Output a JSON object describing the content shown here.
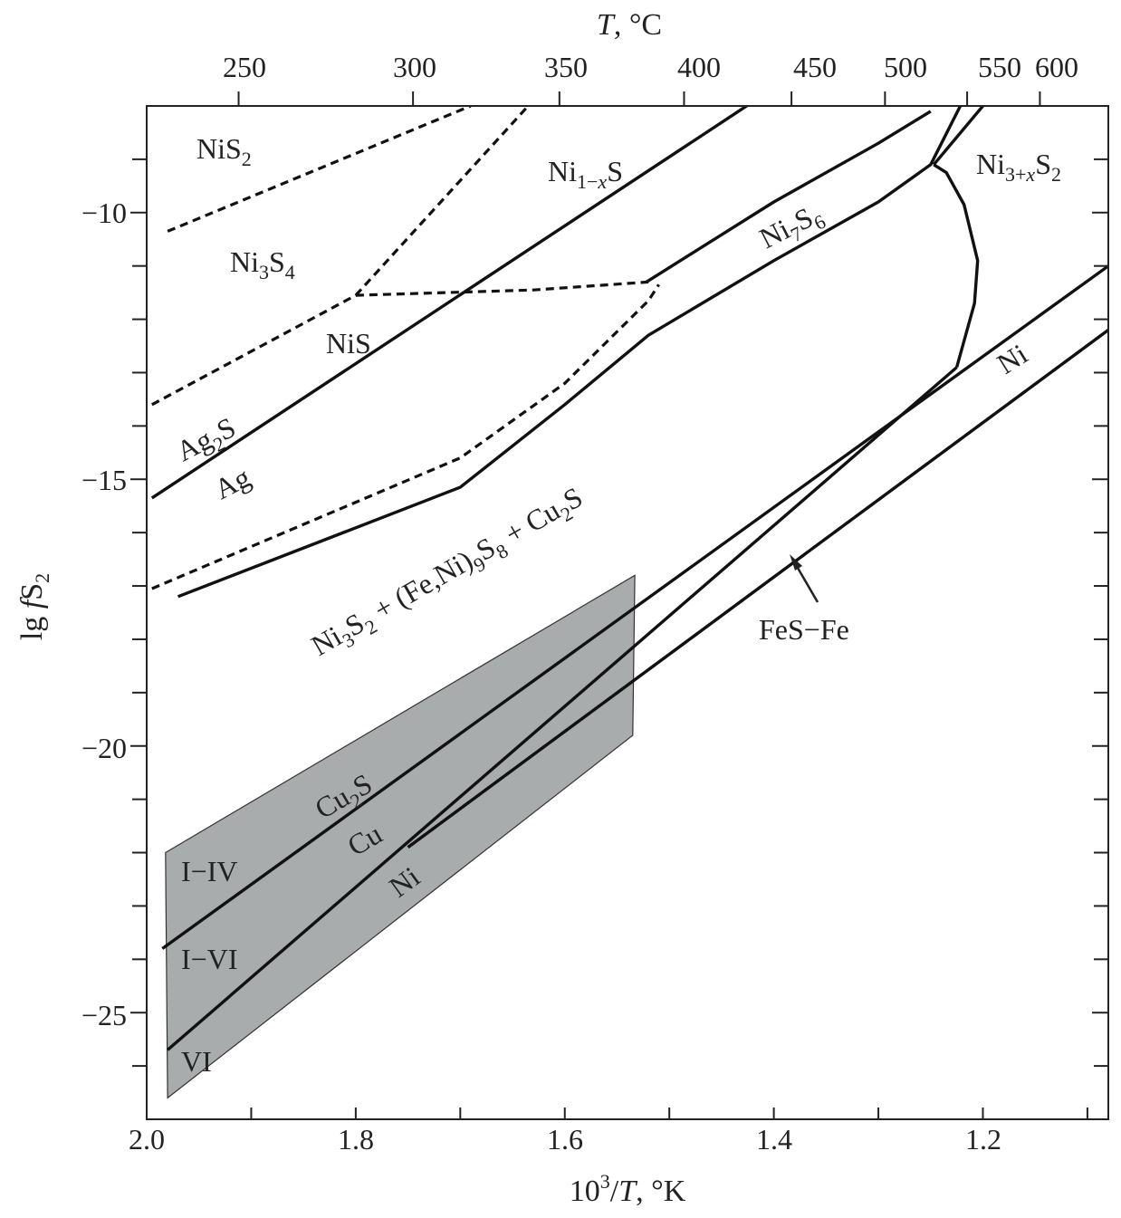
{
  "chart_data": {
    "type": "line",
    "subtype": "phase-diagram",
    "x_axis": {
      "label_html": "10<tspan baseline-shift=\"super\" font-size=\"22\">3</tspan>/<tspan font-style=\"italic\">T</tspan>, °K",
      "label_parts": [
        "10",
        "3",
        "/",
        "T",
        ", °K"
      ],
      "range": [
        2.0,
        1.08
      ],
      "reversed": true,
      "tick_values": [
        2.0,
        1.8,
        1.6,
        1.4,
        1.2
      ],
      "tick_labels": [
        "2.0",
        "1.8",
        "1.6",
        "1.4",
        "1.2"
      ]
    },
    "top_axis": {
      "label_parts": [
        "T",
        ", °C"
      ],
      "unit": "°C",
      "tick_values_C": [
        250,
        300,
        350,
        400,
        450,
        500,
        550,
        600
      ],
      "tick_labels": [
        "250",
        "300",
        "350",
        "400",
        "450",
        "500",
        "550",
        "600"
      ]
    },
    "y_axis": {
      "label_parts": [
        "lg",
        "f",
        "S",
        "2"
      ],
      "range": [
        -27.0,
        -8.0
      ],
      "tick_values": [
        -10,
        -15,
        -20,
        -25
      ],
      "tick_labels": [
        "−10",
        "−15",
        "−20",
        "−25"
      ],
      "minor_step": 1
    },
    "lines": [
      {
        "id": "ag2s-ag",
        "style": "solid",
        "points": [
          [
            1.995,
            -15.35
          ],
          [
            1.31,
            -6.5
          ]
        ]
      },
      {
        "id": "ni1xs-ni7s6",
        "style": "solid",
        "points": [
          [
            1.97,
            -17.2
          ],
          [
            1.7,
            -15.15
          ],
          [
            1.6,
            -13.6
          ],
          [
            1.52,
            -12.3
          ],
          [
            1.4,
            -10.9
          ],
          [
            1.3,
            -9.8
          ],
          [
            1.25,
            -9.1
          ],
          [
            1.17,
            -6.0
          ]
        ]
      },
      {
        "id": "ni7s6-upper",
        "style": "solid",
        "points": [
          [
            1.522,
            -11.3
          ],
          [
            1.4,
            -9.8
          ],
          [
            1.3,
            -8.7
          ],
          [
            1.25,
            -8.1
          ]
        ]
      },
      {
        "id": "ni3x-boundary",
        "style": "solid",
        "points": [
          [
            1.247,
            -9.1
          ],
          [
            1.235,
            -9.25
          ],
          [
            1.218,
            -9.85
          ],
          [
            1.205,
            -10.9
          ],
          [
            1.208,
            -11.7
          ],
          [
            1.225,
            -12.9
          ]
        ]
      },
      {
        "id": "ni3x-upper",
        "style": "solid",
        "points": [
          [
            1.247,
            -9.1
          ],
          [
            1.2,
            -8.0
          ]
        ]
      },
      {
        "id": "cu2s-cu",
        "style": "solid",
        "points": [
          [
            1.985,
            -23.8
          ],
          [
            1.08,
            -11.0
          ]
        ]
      },
      {
        "id": "ni3s2-ni",
        "style": "solid",
        "points": [
          [
            1.98,
            -25.7
          ],
          [
            1.225,
            -12.9
          ]
        ]
      },
      {
        "id": "ni3s2-ni-lower",
        "style": "solid",
        "points": [
          [
            1.75,
            -21.9
          ],
          [
            1.08,
            -12.2
          ]
        ]
      },
      {
        "id": "fes-fe",
        "style": "dashed",
        "points": [
          [
            1.75,
            -21.9
          ],
          [
            1.08,
            -12.2
          ]
        ]
      },
      {
        "id": "ag-dashed",
        "style": "dashed",
        "points": [
          [
            1.995,
            -17.05
          ],
          [
            1.7,
            -14.6
          ],
          [
            1.6,
            -13.2
          ],
          [
            1.52,
            -11.65
          ],
          [
            1.51,
            -11.35
          ]
        ]
      },
      {
        "id": "nis2-ni3s4",
        "style": "dashed",
        "points": [
          [
            1.98,
            -10.35
          ],
          [
            1.69,
            -8.0
          ]
        ]
      },
      {
        "id": "ni3s4-ni1xs",
        "style": "dashed",
        "points": [
          [
            1.8,
            -11.55
          ],
          [
            1.635,
            -8.0
          ]
        ]
      },
      {
        "id": "nis-ni3s4",
        "style": "dashed",
        "points": [
          [
            1.995,
            -13.6
          ],
          [
            1.8,
            -11.55
          ]
        ]
      },
      {
        "id": "nis-ni1xs",
        "style": "dashed",
        "points": [
          [
            1.8,
            -11.55
          ],
          [
            1.63,
            -11.45
          ],
          [
            1.52,
            -11.3
          ]
        ]
      }
    ],
    "shaded_region": {
      "color": "#a9acac",
      "polygon": [
        [
          1.982,
          -22.0
        ],
        [
          1.533,
          -16.8
        ],
        [
          1.535,
          -19.8
        ],
        [
          1.98,
          -26.6
        ]
      ]
    },
    "labels": {
      "nis2": {
        "parts": [
          "NiS",
          "2"
        ]
      },
      "ni1xs": {
        "parts": [
          "Ni",
          "1−",
          "x",
          "S"
        ]
      },
      "ni3s4": {
        "parts": [
          "Ni",
          "3",
          "S",
          "4"
        ]
      },
      "nis": {
        "parts": [
          "NiS"
        ]
      },
      "ag2s": {
        "parts": [
          "Ag",
          "2",
          "S"
        ]
      },
      "ag": {
        "parts": [
          "Ag"
        ]
      },
      "ni7s6": {
        "parts": [
          "Ni",
          "7",
          "S",
          "6"
        ]
      },
      "ni3xs2": {
        "parts": [
          "Ni",
          "3+",
          "x",
          "S",
          "2"
        ]
      },
      "ni_upper": {
        "parts": [
          "Ni"
        ]
      },
      "big_region": {
        "parts": [
          "Ni",
          "3",
          "S",
          "2",
          " + (Fe,Ni)",
          "9",
          "S",
          "8",
          " + Cu",
          "2",
          "S"
        ]
      },
      "fes_fe": {
        "parts": [
          "FeS−Fe"
        ]
      },
      "cu2s": {
        "parts": [
          "Cu",
          "2",
          "S"
        ]
      },
      "cu": {
        "parts": [
          "Cu"
        ]
      },
      "ni_lower": {
        "parts": [
          "Ni"
        ]
      },
      "i_iv": {
        "parts": [
          "I−IV"
        ]
      },
      "i_vi": {
        "parts": [
          "I−VI"
        ]
      },
      "vi": {
        "parts": [
          "VI"
        ]
      }
    }
  }
}
